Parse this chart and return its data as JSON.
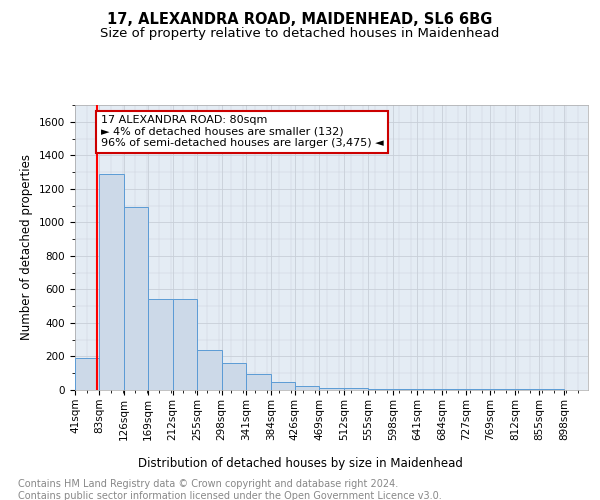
{
  "title": "17, ALEXANDRA ROAD, MAIDENHEAD, SL6 6BG",
  "subtitle": "Size of property relative to detached houses in Maidenhead",
  "xlabel": "Distribution of detached houses by size in Maidenhead",
  "ylabel": "Number of detached properties",
  "footnote1": "Contains HM Land Registry data © Crown copyright and database right 2024.",
  "footnote2": "Contains public sector information licensed under the Open Government Licence v3.0.",
  "annotation_line1": "17 ALEXANDRA ROAD: 80sqm",
  "annotation_line2": "► 4% of detached houses are smaller (132)",
  "annotation_line3": "96% of semi-detached houses are larger (3,475) ◄",
  "bar_color": "#ccd9e8",
  "bar_edge_color": "#5b9bd5",
  "red_line_x": 80,
  "bins": [
    41,
    83,
    126,
    169,
    212,
    255,
    298,
    341,
    384,
    426,
    469,
    512,
    555,
    598,
    641,
    684,
    727,
    769,
    812,
    855,
    898
  ],
  "values": [
    190,
    1290,
    1090,
    540,
    540,
    240,
    160,
    95,
    50,
    25,
    10,
    10,
    8,
    8,
    8,
    8,
    5,
    3,
    3,
    3
  ],
  "ylim": [
    0,
    1700
  ],
  "yticks": [
    0,
    200,
    400,
    600,
    800,
    1000,
    1200,
    1400,
    1600
  ],
  "background_color": "#ffffff",
  "grid_color": "#c8cfd8",
  "plot_bg_color": "#e4ecf4",
  "annotation_box_color": "#ffffff",
  "annotation_box_edge_color": "#cc0000",
  "annotation_text_color": "#000000",
  "title_fontsize": 10.5,
  "subtitle_fontsize": 9.5,
  "axis_label_fontsize": 8.5,
  "tick_fontsize": 7.5,
  "annotation_fontsize": 8,
  "footnote_fontsize": 7
}
